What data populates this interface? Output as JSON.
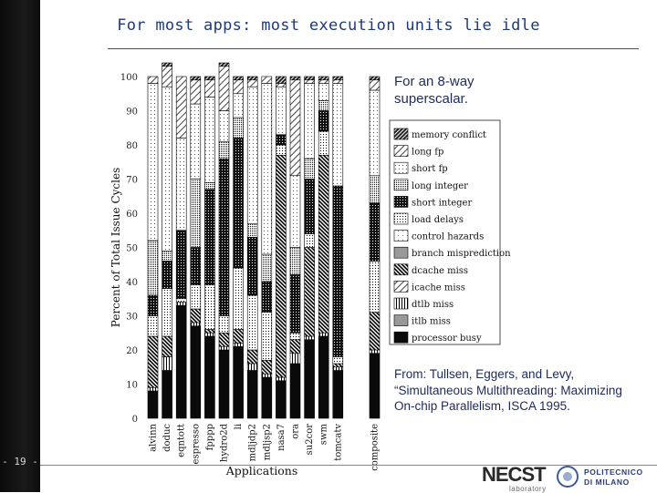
{
  "slide": {
    "title": "For most apps: most execution units lie idle",
    "page_number": "- 19 -",
    "note": "For an 8-way superscalar.",
    "citation": "From: Tullsen, Eggers, and Levy, “Simultaneous Multithreading: Maximizing On-chip Parallelism, ISCA 1995."
  },
  "logos": {
    "necst_main": "NECST",
    "necst_sub": "laboratory",
    "polimi_line1": "POLITECNICO",
    "polimi_line2": "DI MILANO"
  },
  "chart_data": {
    "type": "bar",
    "stacked": true,
    "xlabel": "Applications",
    "ylabel": "Percent of Total Issue Cycles",
    "ylim": [
      0,
      100
    ],
    "yticks": [
      0,
      10,
      20,
      30,
      40,
      50,
      60,
      70,
      80,
      90,
      100
    ],
    "categories": [
      "alvinn",
      "doduc",
      "eqntott",
      "espresso",
      "fpppp",
      "hydro2d",
      "li",
      "mdljdp2",
      "mdljsp2",
      "nasa7",
      "ora",
      "su2cor",
      "swm",
      "tomcatv",
      "composite"
    ],
    "series": [
      {
        "name": "processor busy",
        "fill": "solid-dark",
        "values": [
          8,
          14,
          33,
          27,
          24,
          20,
          21,
          14,
          12,
          11,
          16,
          23,
          24,
          14,
          19
        ]
      },
      {
        "name": "itlb miss",
        "fill": "gray",
        "values": [
          0,
          0,
          0,
          0,
          0,
          0,
          0,
          0,
          0,
          0,
          0,
          0,
          0,
          0,
          0
        ]
      },
      {
        "name": "dtlb miss",
        "fill": "vertical",
        "values": [
          1,
          4,
          1,
          1,
          1,
          1,
          1,
          2,
          1,
          1,
          3,
          1,
          1,
          1,
          1
        ]
      },
      {
        "name": "icache miss",
        "fill": "diag-light",
        "values": [
          0,
          0,
          0,
          0,
          0,
          0,
          0,
          0,
          0,
          0,
          0,
          0,
          0,
          0,
          0
        ]
      },
      {
        "name": "dcache miss",
        "fill": "diag-dark",
        "values": [
          15,
          6,
          0,
          4,
          1,
          4,
          4,
          4,
          4,
          65,
          4,
          26,
          52,
          1,
          11
        ]
      },
      {
        "name": "branch misprediction",
        "fill": "gray",
        "values": [
          0,
          0,
          0,
          0,
          0,
          0,
          0,
          0,
          0,
          0,
          0,
          0,
          0,
          0,
          0
        ]
      },
      {
        "name": "control hazards",
        "fill": "light-dots",
        "values": [
          0,
          0,
          0,
          0,
          0,
          0,
          0,
          0,
          0,
          0,
          0,
          0,
          0,
          0,
          0
        ]
      },
      {
        "name": "load delays",
        "fill": "dots",
        "values": [
          6,
          14,
          1,
          7,
          13,
          5,
          18,
          16,
          14,
          3,
          2,
          4,
          7,
          2,
          15
        ]
      },
      {
        "name": "short integer",
        "fill": "grid",
        "values": [
          6,
          8,
          20,
          11,
          28,
          46,
          38,
          17,
          9,
          3,
          17,
          16,
          6,
          50,
          17
        ]
      },
      {
        "name": "long integer",
        "fill": "dense-dots",
        "values": [
          16,
          3,
          0,
          20,
          2,
          5,
          6,
          4,
          8,
          0,
          8,
          6,
          3,
          0,
          8
        ]
      },
      {
        "name": "short fp",
        "fill": "sparse-dots",
        "values": [
          46,
          48,
          27,
          22,
          25,
          9,
          7,
          40,
          50,
          14,
          21,
          22,
          5,
          30,
          25
        ]
      },
      {
        "name": "long fp",
        "fill": "diag-light",
        "values": [
          2,
          6,
          18,
          7,
          5,
          13,
          4,
          2,
          2,
          1,
          28,
          1,
          1,
          1,
          3
        ]
      },
      {
        "name": "memory conflict",
        "fill": "hatch",
        "values": [
          0,
          1,
          0,
          1,
          1,
          1,
          1,
          1,
          0,
          2,
          1,
          1,
          1,
          1,
          1
        ]
      }
    ]
  }
}
